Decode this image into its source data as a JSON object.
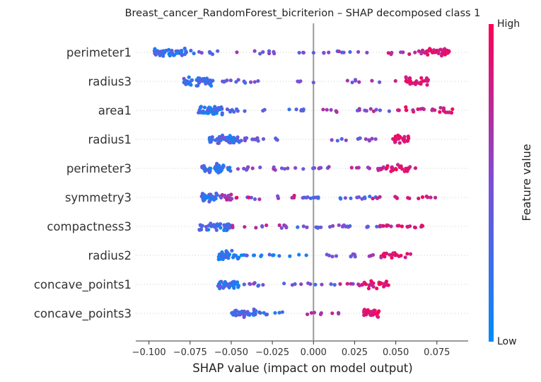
{
  "chart_data": {
    "type": "scatter",
    "title": "Breast_cancer_RandomForest_bicriterion – SHAP decomposed class 1",
    "xlabel": "SHAP value (impact on model output)",
    "ylabel": "",
    "xlim": [
      -0.108,
      0.094
    ],
    "xticks": [
      -0.1,
      -0.075,
      -0.05,
      -0.025,
      0.0,
      0.025,
      0.05,
      0.075
    ],
    "xtick_labels": [
      "−0.100",
      "−0.075",
      "−0.050",
      "−0.025",
      "0.000",
      "0.025",
      "0.050",
      "0.075"
    ],
    "reference_line_x": 0.0,
    "grid": false,
    "colorbar": {
      "title": "Feature value",
      "high_label": "High",
      "low_label": "Low",
      "low_color": "#008bfb",
      "mid_color": "#7c4fd6",
      "high_color": "#ff0052"
    },
    "features": [
      {
        "name": "perimeter1",
        "groups": [
          {
            "x": [
              -0.099,
              -0.072
            ],
            "n": 50,
            "spread": 0.3,
            "c": [
              0.05,
              0.4
            ]
          },
          {
            "x": [
              -0.07,
              -0.058
            ],
            "n": 7,
            "spread": 0.15,
            "c": [
              0.2,
              0.5
            ]
          },
          {
            "x": [
              -0.052,
              0.035
            ],
            "n": 22,
            "spread": 0.12,
            "c": [
              0.3,
              0.65
            ]
          },
          {
            "x": [
              0.045,
              0.066
            ],
            "n": 10,
            "spread": 0.15,
            "c": [
              0.55,
              0.9
            ]
          },
          {
            "x": [
              0.066,
              0.083
            ],
            "n": 35,
            "spread": 0.3,
            "c": [
              0.75,
              1.0
            ]
          }
        ]
      },
      {
        "name": "radius3",
        "groups": [
          {
            "x": [
              -0.08,
              -0.062
            ],
            "n": 45,
            "spread": 0.32,
            "c": [
              0.05,
              0.45
            ]
          },
          {
            "x": [
              -0.062,
              -0.032
            ],
            "n": 14,
            "spread": 0.15,
            "c": [
              0.2,
              0.6
            ]
          },
          {
            "x": [
              -0.012,
              0.058
            ],
            "n": 12,
            "spread": 0.12,
            "c": [
              0.4,
              0.8
            ]
          },
          {
            "x": [
              0.056,
              0.07
            ],
            "n": 30,
            "spread": 0.32,
            "c": [
              0.75,
              1.0
            ]
          }
        ]
      },
      {
        "name": "area1",
        "groups": [
          {
            "x": [
              -0.07,
              -0.055
            ],
            "n": 45,
            "spread": 0.32,
            "c": [
              0.0,
              0.4
            ]
          },
          {
            "x": [
              -0.055,
              -0.04
            ],
            "n": 8,
            "spread": 0.15,
            "c": [
              0.2,
              0.5
            ]
          },
          {
            "x": [
              -0.035,
              -0.005
            ],
            "n": 8,
            "spread": 0.1,
            "c": [
              0.1,
              0.5
            ]
          },
          {
            "x": [
              0.002,
              0.05
            ],
            "n": 16,
            "spread": 0.12,
            "c": [
              0.4,
              0.8
            ]
          },
          {
            "x": [
              0.05,
              0.085
            ],
            "n": 26,
            "spread": 0.22,
            "c": [
              0.7,
              1.0
            ]
          }
        ]
      },
      {
        "name": "radius1",
        "groups": [
          {
            "x": [
              -0.065,
              -0.045
            ],
            "n": 50,
            "spread": 0.35,
            "c": [
              0.05,
              0.5
            ]
          },
          {
            "x": [
              -0.045,
              -0.02
            ],
            "n": 16,
            "spread": 0.12,
            "c": [
              0.3,
              0.65
            ]
          },
          {
            "x": [
              0.005,
              0.04
            ],
            "n": 12,
            "spread": 0.12,
            "c": [
              0.3,
              0.6
            ]
          },
          {
            "x": [
              0.048,
              0.058
            ],
            "n": 22,
            "spread": 0.3,
            "c": [
              0.75,
              1.0
            ]
          }
        ]
      },
      {
        "name": "perimeter3",
        "groups": [
          {
            "x": [
              -0.068,
              -0.05
            ],
            "n": 45,
            "spread": 0.32,
            "c": [
              0.0,
              0.45
            ]
          },
          {
            "x": [
              -0.05,
              0.01
            ],
            "n": 22,
            "spread": 0.12,
            "c": [
              0.3,
              0.7
            ]
          },
          {
            "x": [
              0.02,
              0.045
            ],
            "n": 8,
            "spread": 0.12,
            "c": [
              0.55,
              0.9
            ]
          },
          {
            "x": [
              0.038,
              0.063
            ],
            "n": 28,
            "spread": 0.25,
            "c": [
              0.65,
              1.0
            ]
          }
        ]
      },
      {
        "name": "symmetry3",
        "groups": [
          {
            "x": [
              -0.068,
              -0.058
            ],
            "n": 30,
            "spread": 0.32,
            "c": [
              0.0,
              0.45
            ]
          },
          {
            "x": [
              -0.057,
              -0.05
            ],
            "n": 14,
            "spread": 0.25,
            "c": [
              0.4,
              0.9
            ]
          },
          {
            "x": [
              -0.05,
              -0.01
            ],
            "n": 14,
            "spread": 0.15,
            "c": [
              0.4,
              0.9
            ]
          },
          {
            "x": [
              -0.01,
              0.04
            ],
            "n": 22,
            "spread": 0.12,
            "c": [
              0.1,
              0.5
            ]
          },
          {
            "x": [
              0.035,
              0.075
            ],
            "n": 14,
            "spread": 0.1,
            "c": [
              0.7,
              1.0
            ]
          }
        ]
      },
      {
        "name": "compactness3",
        "groups": [
          {
            "x": [
              -0.07,
              -0.05
            ],
            "n": 45,
            "spread": 0.32,
            "c": [
              0.0,
              0.5
            ]
          },
          {
            "x": [
              -0.05,
              -0.015
            ],
            "n": 12,
            "spread": 0.12,
            "c": [
              0.4,
              0.8
            ]
          },
          {
            "x": [
              -0.01,
              0.04
            ],
            "n": 22,
            "spread": 0.12,
            "c": [
              0.2,
              0.6
            ]
          },
          {
            "x": [
              0.04,
              0.067
            ],
            "n": 20,
            "spread": 0.15,
            "c": [
              0.7,
              1.0
            ]
          }
        ]
      },
      {
        "name": "radius2",
        "groups": [
          {
            "x": [
              -0.06,
              -0.045
            ],
            "n": 35,
            "spread": 0.35,
            "c": [
              0.0,
              0.35
            ]
          },
          {
            "x": [
              -0.045,
              0.0
            ],
            "n": 15,
            "spread": 0.1,
            "c": [
              0.0,
              0.4
            ]
          },
          {
            "x": [
              0.005,
              0.04
            ],
            "n": 12,
            "spread": 0.1,
            "c": [
              0.3,
              0.7
            ]
          },
          {
            "x": [
              0.04,
              0.06
            ],
            "n": 20,
            "spread": 0.25,
            "c": [
              0.7,
              1.0
            ]
          }
        ]
      },
      {
        "name": "concave_points1",
        "groups": [
          {
            "x": [
              -0.058,
              -0.045
            ],
            "n": 38,
            "spread": 0.3,
            "c": [
              0.0,
              0.45
            ]
          },
          {
            "x": [
              -0.045,
              -0.03
            ],
            "n": 8,
            "spread": 0.15,
            "c": [
              0.2,
              0.6
            ]
          },
          {
            "x": [
              -0.018,
              0.015
            ],
            "n": 10,
            "spread": 0.1,
            "c": [
              0.2,
              0.6
            ]
          },
          {
            "x": [
              0.015,
              0.03
            ],
            "n": 8,
            "spread": 0.12,
            "c": [
              0.5,
              0.85
            ]
          },
          {
            "x": [
              0.03,
              0.046
            ],
            "n": 26,
            "spread": 0.3,
            "c": [
              0.7,
              1.0
            ]
          }
        ]
      },
      {
        "name": "concave_points3",
        "groups": [
          {
            "x": [
              -0.05,
              -0.035
            ],
            "n": 40,
            "spread": 0.3,
            "c": [
              0.0,
              0.5
            ]
          },
          {
            "x": [
              -0.035,
              -0.018
            ],
            "n": 8,
            "spread": 0.15,
            "c": [
              0.1,
              0.4
            ]
          },
          {
            "x": [
              -0.005,
              0.02
            ],
            "n": 8,
            "spread": 0.1,
            "c": [
              0.5,
              0.9
            ]
          },
          {
            "x": [
              0.03,
              0.04
            ],
            "n": 26,
            "spread": 0.3,
            "c": [
              0.75,
              1.0
            ]
          }
        ]
      }
    ]
  }
}
